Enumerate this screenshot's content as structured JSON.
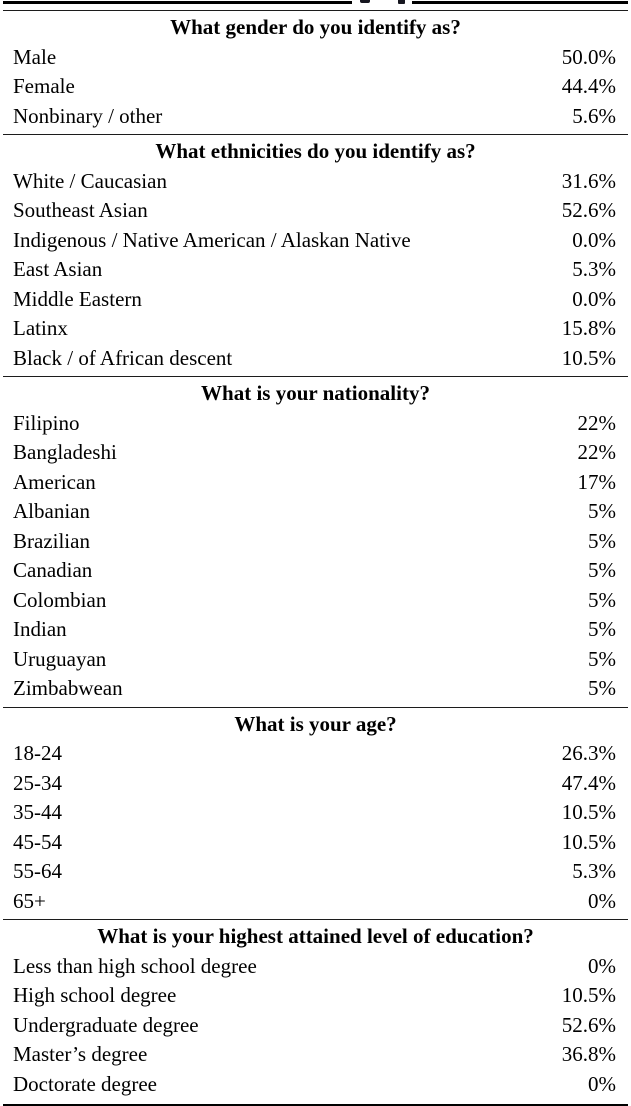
{
  "artifacts": {
    "cropped_caption_fragment": "illegible letter descenders of a cropped caption line at the very top edge"
  },
  "styles": {
    "background": "#ffffff",
    "text_color": "#000000",
    "rule_color": "#000000"
  },
  "table": {
    "sections": [
      {
        "question": "What gender do you identify as?",
        "rows": [
          {
            "label": "Male",
            "value": "50.0%"
          },
          {
            "label": "Female",
            "value": "44.4%"
          },
          {
            "label": "Nonbinary / other",
            "value": "5.6%"
          }
        ]
      },
      {
        "question": "What ethnicities do you identify as?",
        "rows": [
          {
            "label": "White / Caucasian",
            "value": "31.6%"
          },
          {
            "label": "Southeast Asian",
            "value": "52.6%"
          },
          {
            "label": "Indigenous / Native American / Alaskan Native",
            "value": "0.0%"
          },
          {
            "label": "East Asian",
            "value": "5.3%"
          },
          {
            "label": "Middle Eastern",
            "value": "0.0%"
          },
          {
            "label": "Latinx",
            "value": "15.8%"
          },
          {
            "label": "Black / of African descent",
            "value": "10.5%"
          }
        ]
      },
      {
        "question": "What is your nationality?",
        "rows": [
          {
            "label": "Filipino",
            "value": "22%"
          },
          {
            "label": "Bangladeshi",
            "value": "22%"
          },
          {
            "label": "American",
            "value": "17%"
          },
          {
            "label": "Albanian",
            "value": "5%"
          },
          {
            "label": "Brazilian",
            "value": "5%"
          },
          {
            "label": "Canadian",
            "value": "5%"
          },
          {
            "label": "Colombian",
            "value": "5%"
          },
          {
            "label": "Indian",
            "value": "5%"
          },
          {
            "label": "Uruguayan",
            "value": "5%"
          },
          {
            "label": "Zimbabwean",
            "value": "5%"
          }
        ]
      },
      {
        "question": "What is your age?",
        "rows": [
          {
            "label": "18-24",
            "value": "26.3%"
          },
          {
            "label": "25-34",
            "value": "47.4%"
          },
          {
            "label": "35-44",
            "value": "10.5%"
          },
          {
            "label": "45-54",
            "value": "10.5%"
          },
          {
            "label": "55-64",
            "value": "5.3%"
          },
          {
            "label": "65+",
            "value": "0%"
          }
        ]
      },
      {
        "question": "What is your highest attained level of education?",
        "rows": [
          {
            "label": "Less than high school degree",
            "value": "0%"
          },
          {
            "label": "High school degree",
            "value": "10.5%"
          },
          {
            "label": "Undergraduate degree",
            "value": "52.6%"
          },
          {
            "label": "Master’s degree",
            "value": "36.8%"
          },
          {
            "label": "Doctorate degree",
            "value": "0%"
          }
        ]
      }
    ]
  }
}
